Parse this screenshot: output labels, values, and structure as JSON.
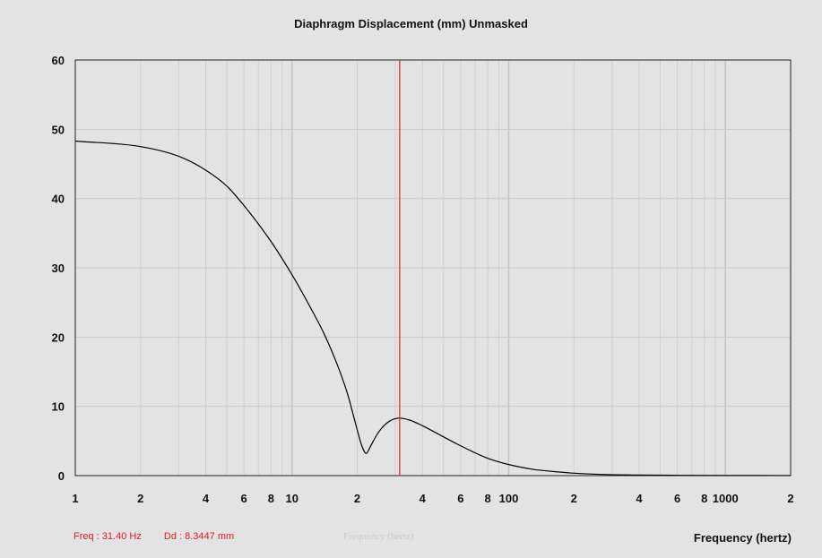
{
  "header": {
    "title": "Diaphragm Displacement (mm)   Unmasked"
  },
  "cursor": {
    "freq_label": "Freq : 31.40 Hz",
    "dd_label": "Dd : 8.3447 mm",
    "freq_value": 31.4,
    "dd_value": 8.3447,
    "color": "#e02020"
  },
  "ghost_label": "Frequency (hertz)",
  "chart_data": {
    "type": "line",
    "title": "Diaphragm Displacement (mm)   Unmasked",
    "xlabel": "Frequency (hertz)",
    "ylabel": "",
    "x_scale": "log",
    "xlim": [
      1,
      2000
    ],
    "ylim": [
      0,
      60
    ],
    "grid": true,
    "x_ticks": [
      1,
      2,
      4,
      6,
      8,
      10,
      20,
      40,
      60,
      80,
      100,
      200,
      400,
      600,
      800,
      1000,
      2000
    ],
    "x_tick_labels": [
      "1",
      "2",
      "4",
      "6",
      "8",
      "10",
      "2",
      "4",
      "6",
      "8",
      "100",
      "2",
      "4",
      "6",
      "8",
      "1000",
      "2"
    ],
    "y_ticks": [
      0,
      10,
      20,
      30,
      40,
      50,
      60
    ],
    "y_tick_labels": [
      "0",
      "10",
      "20",
      "30",
      "40",
      "50",
      "60"
    ],
    "series": [
      {
        "color": "#000000",
        "x": [
          1,
          2,
          3,
          4,
          5,
          6,
          8,
          10,
          12,
          14,
          16,
          18,
          20,
          21,
          22,
          23,
          25,
          28,
          31.4,
          35,
          40,
          50,
          60,
          80,
          100,
          130,
          160,
          200,
          250,
          400,
          600,
          1000,
          2000
        ],
        "y": [
          48.3,
          47.5,
          46.1,
          44.1,
          41.8,
          39.0,
          33.8,
          29.0,
          24.6,
          20.6,
          16.4,
          11.9,
          6.6,
          4.3,
          3.2,
          4.2,
          6.2,
          7.8,
          8.3,
          8.0,
          7.2,
          5.6,
          4.3,
          2.5,
          1.6,
          0.9,
          0.6,
          0.35,
          0.2,
          0.08,
          0.04,
          0.02,
          0.01
        ]
      }
    ],
    "cursor_x": 31.4
  }
}
